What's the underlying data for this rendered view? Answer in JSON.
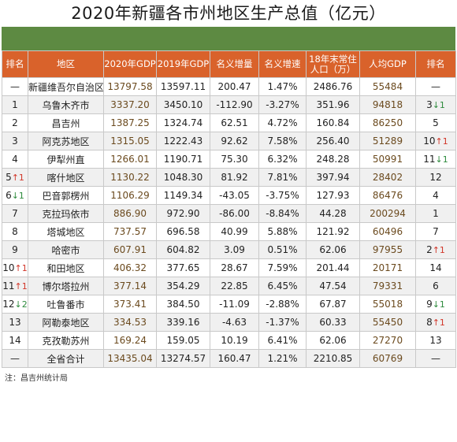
{
  "title": "2020年新疆各市州地区生产总值（亿元）",
  "colors": {
    "header_bg": "#d9622b",
    "banner": "#5d8a42",
    "up_arrow": "#d2372a",
    "down_arrow": "#2e8b3d"
  },
  "headers": [
    "排名",
    "地区",
    "2020年GDP",
    "2019年GDP",
    "名义增量",
    "名义增速",
    "18年末常住人口（万）",
    "人均GDP",
    "排名"
  ],
  "rows": [
    {
      "rank": "—",
      "rank_arrow": "",
      "region": "新疆维吾尔自治区",
      "gdp2020": "13797.58",
      "gdp2019": "13597.11",
      "increment": "200.47",
      "growth": "1.47%",
      "population": "2486.76",
      "per_capita": "55484",
      "pc_rank": "—",
      "pc_arrow": ""
    },
    {
      "rank": "1",
      "rank_arrow": "",
      "region": "乌鲁木齐市",
      "gdp2020": "3337.20",
      "gdp2019": "3450.10",
      "increment": "-112.90",
      "growth": "-3.27%",
      "population": "351.96",
      "per_capita": "94818",
      "pc_rank": "3",
      "pc_arrow": "↓1"
    },
    {
      "rank": "2",
      "rank_arrow": "",
      "region": "昌吉州",
      "gdp2020": "1387.25",
      "gdp2019": "1324.74",
      "increment": "62.51",
      "growth": "4.72%",
      "population": "160.84",
      "per_capita": "86250",
      "pc_rank": "5",
      "pc_arrow": ""
    },
    {
      "rank": "3",
      "rank_arrow": "",
      "region": "阿克苏地区",
      "gdp2020": "1315.05",
      "gdp2019": "1222.43",
      "increment": "92.62",
      "growth": "7.58%",
      "population": "256.40",
      "per_capita": "51289",
      "pc_rank": "10",
      "pc_arrow": "↑1"
    },
    {
      "rank": "4",
      "rank_arrow": "",
      "region": "伊犁州直",
      "gdp2020": "1266.01",
      "gdp2019": "1190.71",
      "increment": "75.30",
      "growth": "6.32%",
      "population": "248.28",
      "per_capita": "50991",
      "pc_rank": "11",
      "pc_arrow": "↓1"
    },
    {
      "rank": "5",
      "rank_arrow": "↑1",
      "region": "喀什地区",
      "gdp2020": "1130.22",
      "gdp2019": "1048.30",
      "increment": "81.92",
      "growth": "7.81%",
      "population": "397.94",
      "per_capita": "28402",
      "pc_rank": "12",
      "pc_arrow": ""
    },
    {
      "rank": "6",
      "rank_arrow": "↓1",
      "region": "巴音郭楞州",
      "gdp2020": "1106.29",
      "gdp2019": "1149.34",
      "increment": "-43.05",
      "growth": "-3.75%",
      "population": "127.93",
      "per_capita": "86476",
      "pc_rank": "4",
      "pc_arrow": ""
    },
    {
      "rank": "7",
      "rank_arrow": "",
      "region": "克拉玛依市",
      "gdp2020": "886.90",
      "gdp2019": "972.90",
      "increment": "-86.00",
      "growth": "-8.84%",
      "population": "44.28",
      "per_capita": "200294",
      "pc_rank": "1",
      "pc_arrow": ""
    },
    {
      "rank": "8",
      "rank_arrow": "",
      "region": "塔城地区",
      "gdp2020": "737.57",
      "gdp2019": "696.58",
      "increment": "40.99",
      "growth": "5.88%",
      "population": "121.92",
      "per_capita": "60496",
      "pc_rank": "7",
      "pc_arrow": ""
    },
    {
      "rank": "9",
      "rank_arrow": "",
      "region": "哈密市",
      "gdp2020": "607.91",
      "gdp2019": "604.82",
      "increment": "3.09",
      "growth": "0.51%",
      "population": "62.06",
      "per_capita": "97955",
      "pc_rank": "2",
      "pc_arrow": "↑1"
    },
    {
      "rank": "10",
      "rank_arrow": "↑1",
      "region": "和田地区",
      "gdp2020": "406.32",
      "gdp2019": "377.65",
      "increment": "28.67",
      "growth": "7.59%",
      "population": "201.44",
      "per_capita": "20171",
      "pc_rank": "14",
      "pc_arrow": ""
    },
    {
      "rank": "11",
      "rank_arrow": "↑1",
      "region": "博尔塔拉州",
      "gdp2020": "377.14",
      "gdp2019": "354.29",
      "increment": "22.85",
      "growth": "6.45%",
      "population": "47.54",
      "per_capita": "79331",
      "pc_rank": "6",
      "pc_arrow": ""
    },
    {
      "rank": "12",
      "rank_arrow": "↓2",
      "region": "吐鲁番市",
      "gdp2020": "373.41",
      "gdp2019": "384.50",
      "increment": "-11.09",
      "growth": "-2.88%",
      "population": "67.87",
      "per_capita": "55018",
      "pc_rank": "9",
      "pc_arrow": "↓1"
    },
    {
      "rank": "13",
      "rank_arrow": "",
      "region": "阿勒泰地区",
      "gdp2020": "334.53",
      "gdp2019": "339.16",
      "increment": "-4.63",
      "growth": "-1.37%",
      "population": "60.33",
      "per_capita": "55450",
      "pc_rank": "8",
      "pc_arrow": "↑1"
    },
    {
      "rank": "14",
      "rank_arrow": "",
      "region": "克孜勒苏州",
      "gdp2020": "169.24",
      "gdp2019": "159.05",
      "increment": "10.19",
      "growth": "6.41%",
      "population": "62.06",
      "per_capita": "27270",
      "pc_rank": "13",
      "pc_arrow": ""
    },
    {
      "rank": "—",
      "rank_arrow": "",
      "region": "全省合计",
      "gdp2020": "13435.04",
      "gdp2019": "13274.57",
      "increment": "160.47",
      "growth": "1.21%",
      "population": "2210.85",
      "per_capita": "60769",
      "pc_rank": "—",
      "pc_arrow": ""
    }
  ],
  "note": "注：昌吉州统计局"
}
